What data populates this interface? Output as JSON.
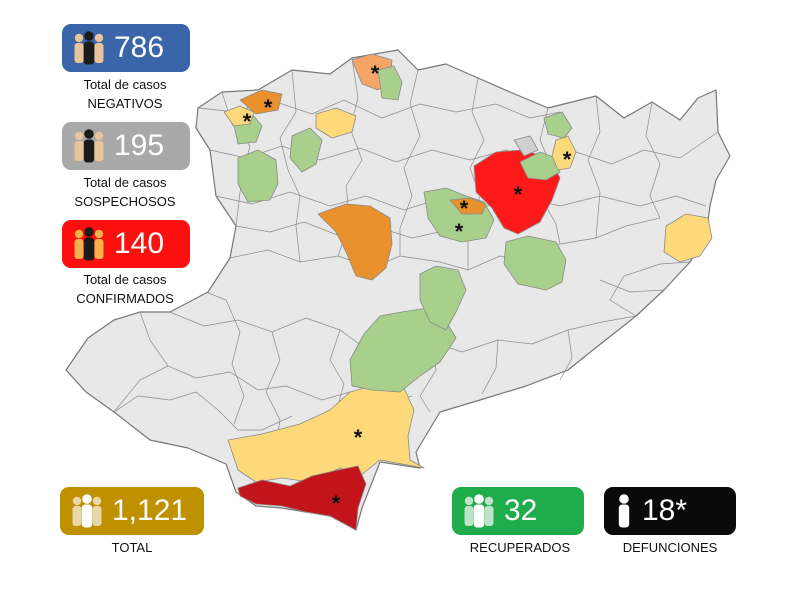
{
  "colors": {
    "base": "#e8e8e8",
    "border": "#8a8a8a",
    "green": "#a8cf8b",
    "yellow": "#fdd97a",
    "orange": "#e8912d",
    "light_orange": "#f4a567",
    "red": "#ff1a1a",
    "dark_red": "#c4141b",
    "light_gray": "#d0d0d0"
  },
  "stats": {
    "negativos": {
      "value": "786",
      "line1": "Total de casos",
      "line2": "NEGATIVOS",
      "color": "#3a65a8"
    },
    "sospechosos": {
      "value": "195",
      "line1": "Total de casos",
      "line2": "SOSPECHOSOS",
      "color": "#a9a9a9"
    },
    "confirmados": {
      "value": "140",
      "line1": "Total de casos",
      "line2": "CONFIRMADOS",
      "color": "#fb0f0f"
    },
    "total": {
      "value": "1,121",
      "label": "TOTAL",
      "color": "#bf9000"
    },
    "recuperados": {
      "value": "32",
      "label": "RECUPERADOS",
      "color": "#1fac4b"
    },
    "defunciones": {
      "value": "18*",
      "label": "DEFUNCIONES",
      "color": "#0a0a0a"
    }
  },
  "map": {
    "marker_symbol": "*",
    "legend_icons": [
      "people-group-icon",
      "person-icon"
    ]
  }
}
